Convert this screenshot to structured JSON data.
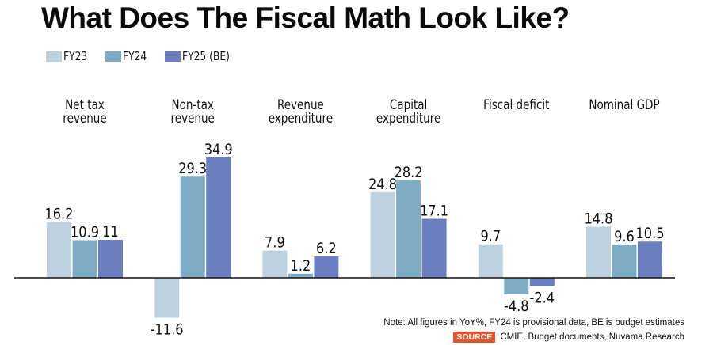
{
  "title": "What Does The Fiscal Math Look Like?",
  "legend": [
    {
      "label": "FY23",
      "color": "#bed1df"
    },
    {
      "label": "FY24",
      "color": "#7eacc4"
    },
    {
      "label": "FY25 (BE)",
      "color": "#6b7fc0"
    }
  ],
  "footer": {
    "note": "Note: All figures in YoY%, FY24 is provisional data, BE is budget estimates",
    "source_label": "SOURCE",
    "source_text": "CMIE, Budget documents, Nuvama Research",
    "source_color": "#e8532a"
  },
  "chart_data": {
    "type": "bar",
    "title": "What Does The Fiscal Math Look Like?",
    "xlabel": "",
    "ylabel": "YoY%",
    "categories": [
      [
        "Net tax",
        "revenue"
      ],
      [
        "Non-tax",
        "revenue"
      ],
      [
        "Revenue",
        "expenditure"
      ],
      [
        "Capital",
        "expenditure"
      ],
      [
        "Fiscal deficit"
      ],
      [
        "Nominal GDP"
      ]
    ],
    "series": [
      {
        "name": "FY23",
        "values": [
          16.2,
          -11.6,
          7.9,
          24.8,
          9.7,
          14.8
        ]
      },
      {
        "name": "FY24",
        "values": [
          10.9,
          29.3,
          1.2,
          28.2,
          -4.8,
          9.6
        ]
      },
      {
        "name": "FY25 (BE)",
        "values": [
          11,
          34.9,
          6.2,
          17.1,
          -2.4,
          10.5
        ]
      }
    ],
    "data_labels": [
      [
        "16.2",
        "-11.6",
        "7.9",
        "24.8",
        "9.7",
        "14.8"
      ],
      [
        "10.9",
        "29.3",
        "1.2",
        "28.2",
        "-4.8",
        "9.6"
      ],
      [
        "11",
        "34.9",
        "6.2",
        "17.1",
        "-2.4",
        "10.5"
      ]
    ],
    "ylim": [
      -12,
      35
    ],
    "grid": false,
    "legend_position": "top-left"
  }
}
